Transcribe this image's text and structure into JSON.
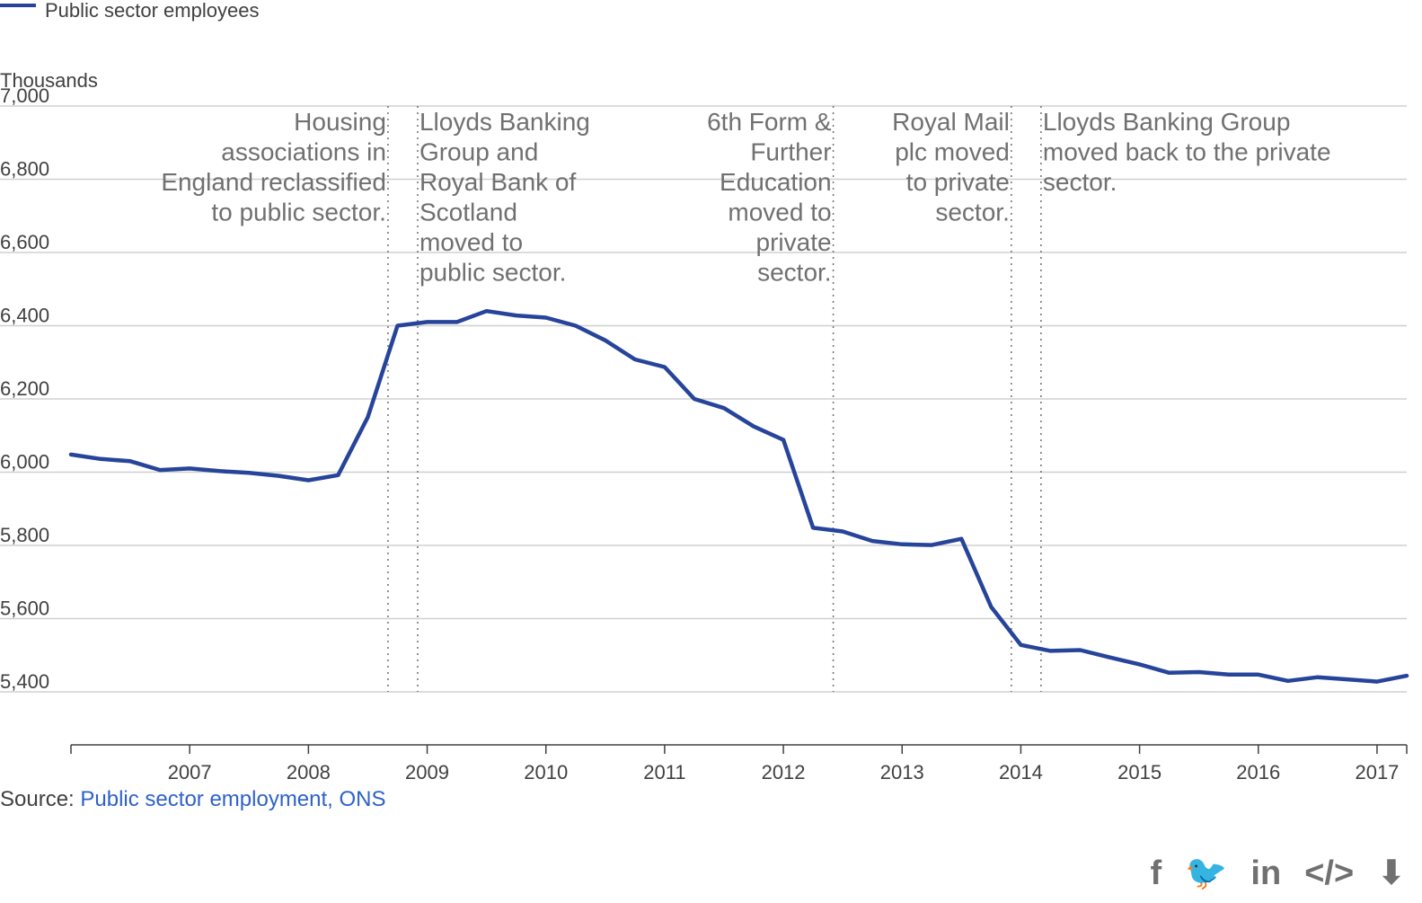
{
  "legend": {
    "series_label": "Public sector employees",
    "color": "#27449b"
  },
  "y_unit": "Thousands",
  "source": {
    "prefix": "Source: ",
    "link_text": "Public sector employment, ONS",
    "link_color": "#2e62c8"
  },
  "share_icons": [
    {
      "name": "facebook-icon",
      "glyph": "f"
    },
    {
      "name": "twitter-icon",
      "glyph": "🐦"
    },
    {
      "name": "linkedin-icon",
      "glyph": "in"
    },
    {
      "name": "embed-icon",
      "glyph": "</>"
    },
    {
      "name": "download-icon",
      "glyph": "⬇"
    }
  ],
  "chart_data": {
    "type": "line",
    "title": "",
    "xlabel": "",
    "ylabel": "Thousands",
    "xlim": [
      2006.0,
      2017.25
    ],
    "ylim": [
      5400,
      7000
    ],
    "y_ticks": [
      5400,
      5600,
      5800,
      6000,
      6200,
      6400,
      6600,
      6800,
      7000
    ],
    "y_tick_labels": [
      "5,400",
      "5,600",
      "5,800",
      "6,000",
      "6,200",
      "6,400",
      "6,600",
      "6,800",
      "7,000"
    ],
    "x_ticks": [
      2007,
      2008,
      2009,
      2010,
      2011,
      2012,
      2013,
      2014,
      2015,
      2016,
      2017
    ],
    "x_tick_labels": [
      "2007",
      "2008",
      "2009",
      "2010",
      "2011",
      "2012",
      "2013",
      "2014",
      "2015",
      "2016",
      "2017"
    ],
    "grid": true,
    "legend_position": "top-left",
    "series": [
      {
        "name": "Public sector employees",
        "color": "#27449b",
        "x": [
          2006.0,
          2006.25,
          2006.5,
          2006.75,
          2007.0,
          2007.25,
          2007.5,
          2007.75,
          2008.0,
          2008.25,
          2008.5,
          2008.75,
          2009.0,
          2009.25,
          2009.5,
          2009.75,
          2010.0,
          2010.25,
          2010.5,
          2010.75,
          2011.0,
          2011.25,
          2011.5,
          2011.75,
          2012.0,
          2012.25,
          2012.5,
          2012.75,
          2013.0,
          2013.25,
          2013.5,
          2013.75,
          2014.0,
          2014.25,
          2014.5,
          2014.75,
          2015.0,
          2015.25,
          2015.5,
          2015.75,
          2016.0,
          2016.25,
          2016.5,
          2016.75,
          2017.0,
          2017.25
        ],
        "values": [
          6048,
          6036,
          6030,
          6006,
          6010,
          6003,
          5998,
          5990,
          5978,
          5992,
          6150,
          6400,
          6410,
          6410,
          6440,
          6428,
          6422,
          6400,
          6360,
          6308,
          6287,
          6200,
          6175,
          6125,
          6088,
          5848,
          5838,
          5812,
          5803,
          5801,
          5818,
          5632,
          5528,
          5512,
          5514,
          5494,
          5475,
          5452,
          5454,
          5447,
          5447,
          5430,
          5440,
          5434,
          5428,
          5444
        ]
      }
    ],
    "annotations": [
      {
        "x": 2008.67,
        "lines": [
          "Housing",
          "associations in",
          "England reclassified",
          "to public sector."
        ],
        "text_anchor": "end"
      },
      {
        "x": 2008.92,
        "lines": [
          "Lloyds Banking",
          "Group and",
          "Royal Bank of",
          "Scotland",
          "moved to",
          "public sector."
        ],
        "text_anchor": "start"
      },
      {
        "x": 2012.42,
        "lines": [
          "6th Form &",
          "Further",
          "Education",
          "moved to",
          "private",
          "sector."
        ],
        "text_anchor": "end"
      },
      {
        "x": 2013.92,
        "lines": [
          "Royal Mail",
          "plc moved",
          "to private",
          "sector."
        ],
        "text_anchor": "end"
      },
      {
        "x": 2014.17,
        "lines": [
          "Lloyds Banking Group",
          "moved back to the private",
          "sector."
        ],
        "text_anchor": "start"
      }
    ]
  }
}
